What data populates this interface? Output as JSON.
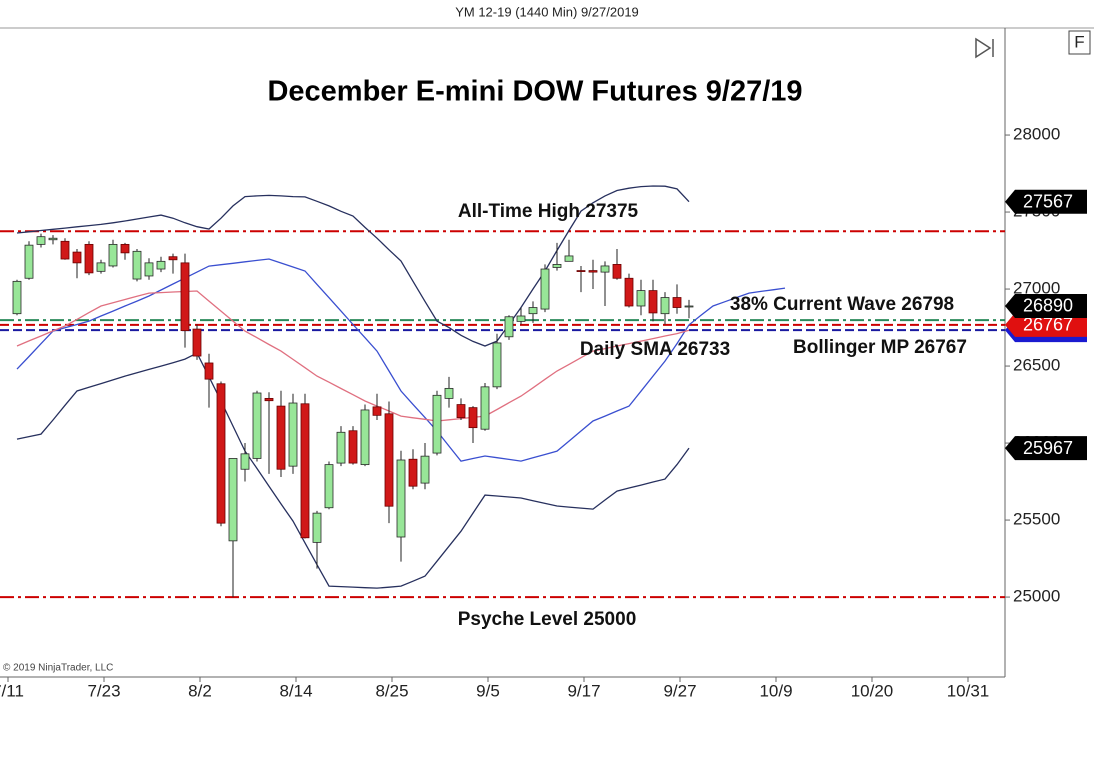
{
  "header": "YM 12-19 (1440 Min)  9/27/2019",
  "toolbar": {
    "button": "F"
  },
  "copyright": "© 2019 NinjaTrader, LLC",
  "chart_data": {
    "type": "candlestick",
    "title": "December E-mini DOW Futures 9/27/19",
    "categories": [
      "7/11",
      null,
      null,
      null,
      null,
      null,
      null,
      null,
      "7/23",
      null,
      null,
      null,
      null,
      null,
      null,
      null,
      "8/2",
      null,
      null,
      null,
      null,
      null,
      null,
      null,
      "8/14",
      null,
      null,
      null,
      null,
      null,
      null,
      null,
      "8/25",
      null,
      null,
      null,
      null,
      null,
      null,
      null,
      "9/5",
      null,
      null,
      null,
      null,
      null,
      null,
      null,
      "9/17",
      null,
      null,
      null,
      null,
      null,
      null,
      null,
      "9/27",
      null,
      null,
      null,
      null,
      null,
      null,
      null,
      "10/9",
      null,
      null,
      null,
      null,
      null,
      null,
      null,
      "10/20",
      null,
      null,
      null,
      null,
      null,
      null,
      null,
      "10/31",
      null,
      null
    ],
    "open": [
      26840,
      27070,
      27290,
      27320,
      27310,
      27240,
      27290,
      27115,
      27150,
      27290,
      27065,
      27085,
      27130,
      27210,
      27170,
      26740,
      26520,
      26385,
      25365,
      25830,
      25900,
      26290,
      26240,
      25850,
      26255,
      25355,
      25580,
      25870,
      26080,
      25860,
      26235,
      26190,
      25390,
      25895,
      25740,
      25935,
      26290,
      26250,
      26230,
      26090,
      26365,
      26690,
      26790,
      26840,
      26870,
      27140,
      27180,
      27120,
      27120,
      27110,
      27160,
      27070,
      26890,
      26990,
      26840,
      26945,
      26885,
      null,
      null,
      null,
      null,
      null,
      null,
      null,
      null,
      null,
      null,
      null,
      null,
      null,
      null,
      null,
      null,
      null,
      null,
      null,
      null,
      null,
      null,
      null,
      null,
      null,
      null
    ],
    "high": [
      27060,
      27310,
      27360,
      27350,
      27330,
      27260,
      27310,
      27190,
      27320,
      27300,
      27260,
      27200,
      27210,
      27230,
      27230,
      26770,
      26580,
      26400,
      25900,
      26000,
      26340,
      26330,
      26340,
      26320,
      26320,
      25560,
      25880,
      26110,
      26110,
      26250,
      26320,
      26270,
      25950,
      25960,
      26000,
      26340,
      26430,
      26290,
      26240,
      26390,
      26710,
      26830,
      26880,
      26920,
      27160,
      27300,
      27320,
      27150,
      27190,
      27180,
      27260,
      27100,
      27060,
      27060,
      26980,
      27030,
      26930,
      null,
      null,
      null,
      null,
      null,
      null,
      null,
      null,
      null,
      null,
      null,
      null,
      null,
      null,
      null,
      null,
      null,
      null,
      null,
      null,
      null,
      null,
      null,
      null,
      null,
      null
    ],
    "low": [
      26830,
      27060,
      27270,
      27290,
      27190,
      27070,
      27090,
      27100,
      27140,
      27190,
      27050,
      27060,
      27110,
      27100,
      26620,
      26540,
      26230,
      25460,
      25000,
      25750,
      25880,
      25800,
      25780,
      25800,
      25380,
      25185,
      25570,
      25850,
      25860,
      25850,
      26150,
      25480,
      25230,
      25700,
      25700,
      25920,
      26230,
      26150,
      26000,
      26080,
      26350,
      26670,
      26770,
      26780,
      26850,
      27120,
      27180,
      26980,
      27000,
      26890,
      27060,
      26880,
      26830,
      26790,
      26770,
      26840,
      26810,
      null,
      null,
      null,
      null,
      null,
      null,
      null,
      null,
      null,
      null,
      null,
      null,
      null,
      null,
      null,
      null,
      null,
      null,
      null,
      null,
      null,
      null,
      null,
      null,
      null,
      null
    ],
    "close": [
      27050,
      27285,
      27340,
      27330,
      27195,
      27170,
      27105,
      27170,
      27290,
      27235,
      27245,
      27170,
      27180,
      27190,
      26730,
      26565,
      26415,
      25480,
      25900,
      25930,
      26325,
      26275,
      25830,
      26260,
      25385,
      25545,
      25860,
      26070,
      25870,
      26215,
      26180,
      25590,
      25890,
      25720,
      25915,
      26310,
      26355,
      26165,
      26100,
      26365,
      26650,
      26820,
      26825,
      26880,
      27130,
      27160,
      27215,
      27115,
      27110,
      27150,
      27070,
      26890,
      26990,
      26845,
      26945,
      26880,
      26890,
      null,
      null,
      null,
      null,
      null,
      null,
      null,
      null,
      null,
      null,
      null,
      null,
      null,
      null,
      null,
      null,
      null,
      null,
      null,
      null,
      null,
      null,
      null,
      null,
      null,
      null
    ],
    "up_color": "#98e698",
    "down_color": "#d01818",
    "series": [
      {
        "color": "#27305e",
        "values": [
          27364,
          27372,
          27380,
          27388,
          27396,
          27404,
          27412,
          27420,
          27430,
          27442,
          27455,
          27468,
          27480,
          27460,
          27430,
          27405,
          27390,
          27460,
          27540,
          27600,
          27605,
          27608,
          27605,
          27600,
          27598,
          27570,
          27540,
          27505,
          27474,
          27400,
          27330,
          27255,
          27182,
          27050,
          26920,
          26792,
          26750,
          26700,
          26660,
          26630,
          26662,
          26770,
          26880,
          27000,
          27117,
          27250,
          27380,
          27506,
          27560,
          27605,
          27640,
          27655,
          27665,
          27669,
          27668,
          27650,
          27567,
          null,
          null,
          null,
          null,
          null,
          null,
          null,
          null,
          null,
          null,
          null,
          null,
          null,
          null,
          null,
          null,
          null,
          null,
          null,
          null,
          null,
          null,
          null,
          null,
          null,
          null
        ]
      },
      {
        "color": "#27305e",
        "values": [
          26026,
          26042,
          26058,
          26150,
          26245,
          26338,
          26362,
          26386,
          26410,
          26435,
          26457,
          26478,
          26500,
          26522,
          26545,
          26584,
          26430,
          26273,
          26110,
          25948,
          25835,
          25720,
          25605,
          25493,
          25352,
          25210,
          25071,
          25068,
          25065,
          25061,
          25058,
          25064,
          25071,
          25103,
          25136,
          25233,
          25330,
          25428,
          25545,
          25662,
          25656,
          25650,
          25643,
          25626,
          25608,
          25591,
          25584,
          25578,
          25571,
          25630,
          25688,
          25708,
          25727,
          25747,
          25766,
          25860,
          25967,
          null,
          null,
          null,
          null,
          null,
          null,
          null,
          null,
          null,
          null,
          null,
          null,
          null,
          null,
          null,
          null,
          null,
          null,
          null,
          null,
          null,
          null,
          null,
          null,
          null,
          null
        ]
      },
      {
        "color": "#3a4fd0",
        "values": [
          26480,
          26562,
          26645,
          26727,
          26749,
          26770,
          26792,
          26825,
          26857,
          26890,
          26922,
          26955,
          26994,
          27033,
          27071,
          27110,
          27149,
          27158,
          27167,
          27177,
          27186,
          27195,
          27169,
          27143,
          27117,
          27030,
          26944,
          26857,
          26770,
          26684,
          26597,
          26468,
          26338,
          26251,
          26165,
          26078,
          25980,
          25883,
          25900,
          25916,
          25905,
          25894,
          25883,
          25905,
          25926,
          25948,
          26013,
          26078,
          26143,
          26175,
          26208,
          26240,
          26337,
          26435,
          26532,
          26646,
          26767,
          26830,
          26890,
          26918,
          26946,
          26974,
          26985,
          26995,
          27006,
          null,
          null,
          null,
          null,
          null,
          null,
          null,
          null,
          null,
          null,
          null,
          null,
          null,
          null,
          null,
          null,
          null,
          null
        ]
      },
      {
        "color": "#e07080",
        "values": [
          26630,
          26663,
          26695,
          26728,
          26760,
          26803,
          26847,
          26890,
          26911,
          26932,
          26953,
          26974,
          26977,
          26981,
          26984,
          26987,
          26922,
          26857,
          26792,
          26727,
          26684,
          26640,
          26597,
          26543,
          26489,
          26435,
          26395,
          26354,
          26314,
          26273,
          26240,
          26208,
          26175,
          26164,
          26154,
          26143,
          26151,
          26159,
          26167,
          26175,
          26218,
          26262,
          26305,
          26359,
          26414,
          26468,
          26511,
          26554,
          26597,
          26613,
          26630,
          26646,
          26662,
          26678,
          26695,
          26711,
          26733,
          null,
          null,
          null,
          null,
          null,
          null,
          null,
          null,
          null,
          null,
          null,
          null,
          null,
          null,
          null,
          null,
          null,
          null,
          null,
          null,
          null,
          null,
          null,
          null,
          null,
          null
        ]
      }
    ],
    "levels": [
      {
        "label": "All-Time High 27375",
        "value": 27375,
        "color": "#cc0000"
      },
      {
        "label": "38% Current Wave 26798",
        "value": 26798,
        "color": "#2a8a5a"
      },
      {
        "label": "Bollinger MP 26767",
        "value": 26767,
        "color": "#cc0000"
      },
      {
        "label": "Daily SMA 26733",
        "value": 26733,
        "color": "#1a1aa0"
      },
      {
        "label": "Psyche Level 25000",
        "value": 25000,
        "color": "#cc0000"
      }
    ],
    "axis_markers": [
      {
        "value": 26733,
        "color": "#1a1ad0"
      },
      {
        "value": 26767,
        "color": "#e01010"
      },
      {
        "value": 27567,
        "color": "#000000"
      },
      {
        "value": 26890,
        "color": "#000000"
      },
      {
        "value": 25967,
        "color": "#000000"
      }
    ],
    "ylim": [
      24481,
      28695
    ],
    "yticks": [
      25000,
      25500,
      26000,
      26500,
      27000,
      27500,
      28000
    ]
  }
}
